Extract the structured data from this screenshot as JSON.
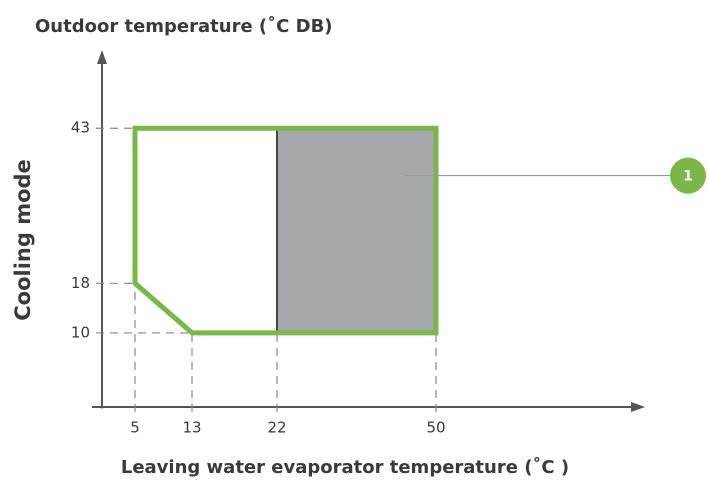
{
  "chart_data": {
    "type": "envelope",
    "title": "Outdoor temperature (˚C DB)",
    "x_label": "Leaving water evaporator temperature (˚C )",
    "side_label": "Cooling mode",
    "xlim": [
      0,
      80
    ],
    "xticks": [
      5,
      13,
      22,
      50
    ],
    "ylim": [
      -1.2,
      54
    ],
    "yticks": [
      10,
      18,
      43
    ],
    "envelope": {
      "color": "#7ab648",
      "x": [
        5,
        5,
        13,
        50,
        50
      ],
      "y": [
        43,
        18,
        10,
        10,
        43
      ]
    },
    "region": {
      "color": "#a7a8ac",
      "x": [
        22,
        50
      ],
      "y": [
        10,
        43
      ]
    },
    "annotation": "1"
  }
}
